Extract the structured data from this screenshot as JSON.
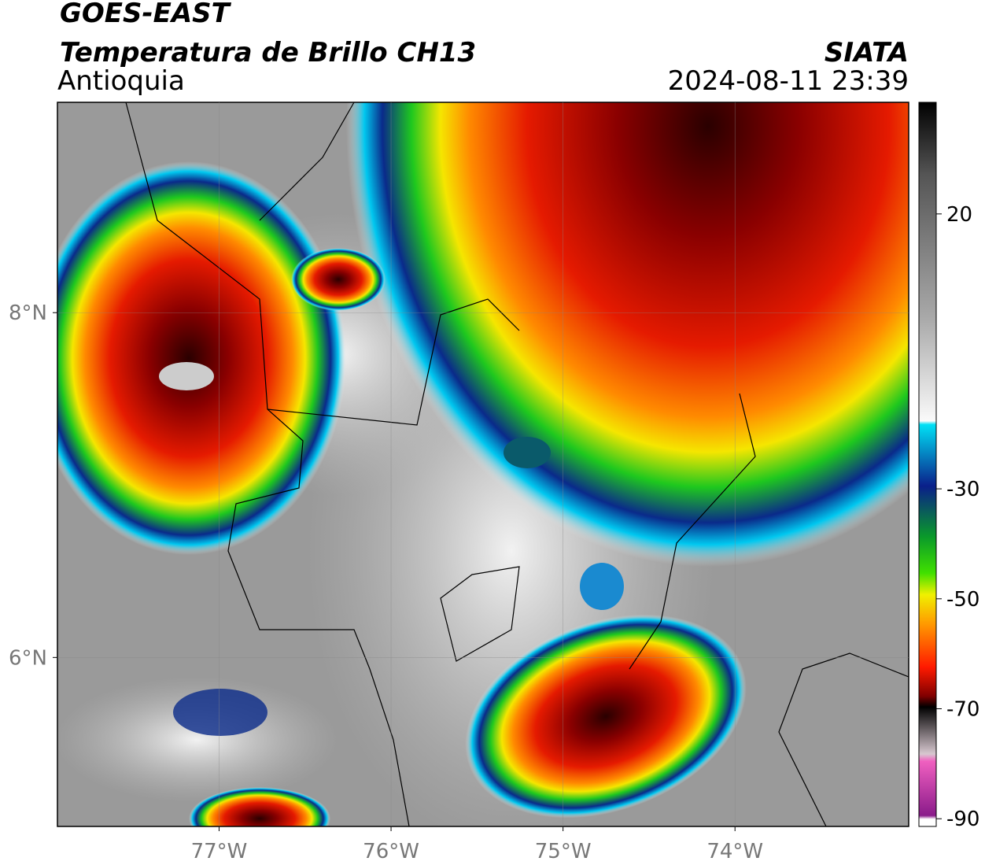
{
  "header": {
    "title": "GOES-EAST",
    "subtitle": "Temperatura de Brillo CH13",
    "region": "Antioquia",
    "source": "SIATA",
    "datetime": "2024-08-11 23:39"
  },
  "map": {
    "lonlim": [
      -77.94,
      -72.99
    ],
    "latlim": [
      5.02,
      9.22
    ],
    "lonticks": [
      {
        "value": -77,
        "label": "77°W"
      },
      {
        "value": -76,
        "label": "76°W"
      },
      {
        "value": -75,
        "label": "75°W"
      },
      {
        "value": -74,
        "label": "74°W"
      }
    ],
    "latticks": [
      {
        "value": 8,
        "label": "8°N"
      },
      {
        "value": 6,
        "label": "6°N"
      }
    ],
    "grid": true
  },
  "colorbar": {
    "lim": [
      -91.4,
      40.3
    ],
    "ticks": [
      20,
      -30,
      -50,
      -70,
      -90
    ]
  }
}
